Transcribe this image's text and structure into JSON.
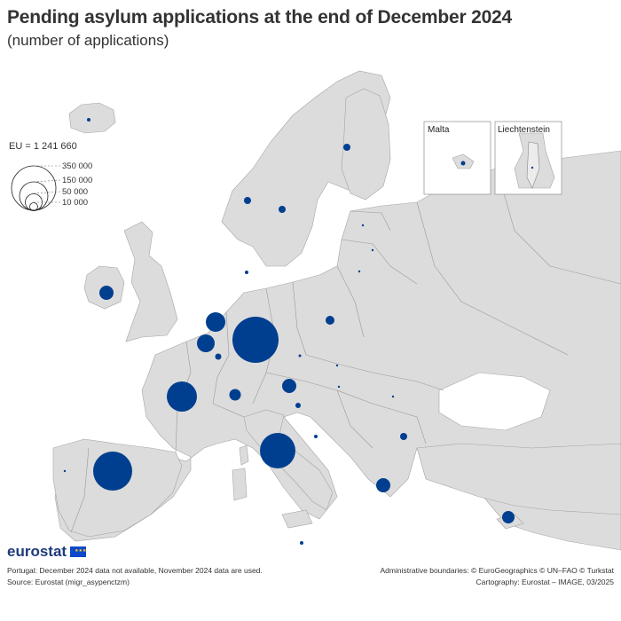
{
  "header": {
    "title": "Pending asylum applications at the end of December 2024",
    "subtitle": "(number of applications)"
  },
  "legend": {
    "eu_total": "EU = 1 241 660",
    "sizes": [
      "350 000",
      "150 000",
      "50 000",
      "10 000"
    ]
  },
  "insets": {
    "malta": "Malta",
    "liechtenstein": "Liechtenstein"
  },
  "colors": {
    "land": "#dcdcdc",
    "sea": "#ffffff",
    "bubble": "#003f8f",
    "border": "#9a9a9a"
  },
  "footer": {
    "brand": "eurostat",
    "note": "Portugal: December 2024 data not available, November 2024 data are used.",
    "source": "Source: Eurostat (migr_asypenctzm)",
    "boundaries": "Administrative boundaries: © EuroGeographics © UN–FAO © Turkstat",
    "cartography": "Cartography: Eurostat – IMAGE, 03/2025"
  }
}
